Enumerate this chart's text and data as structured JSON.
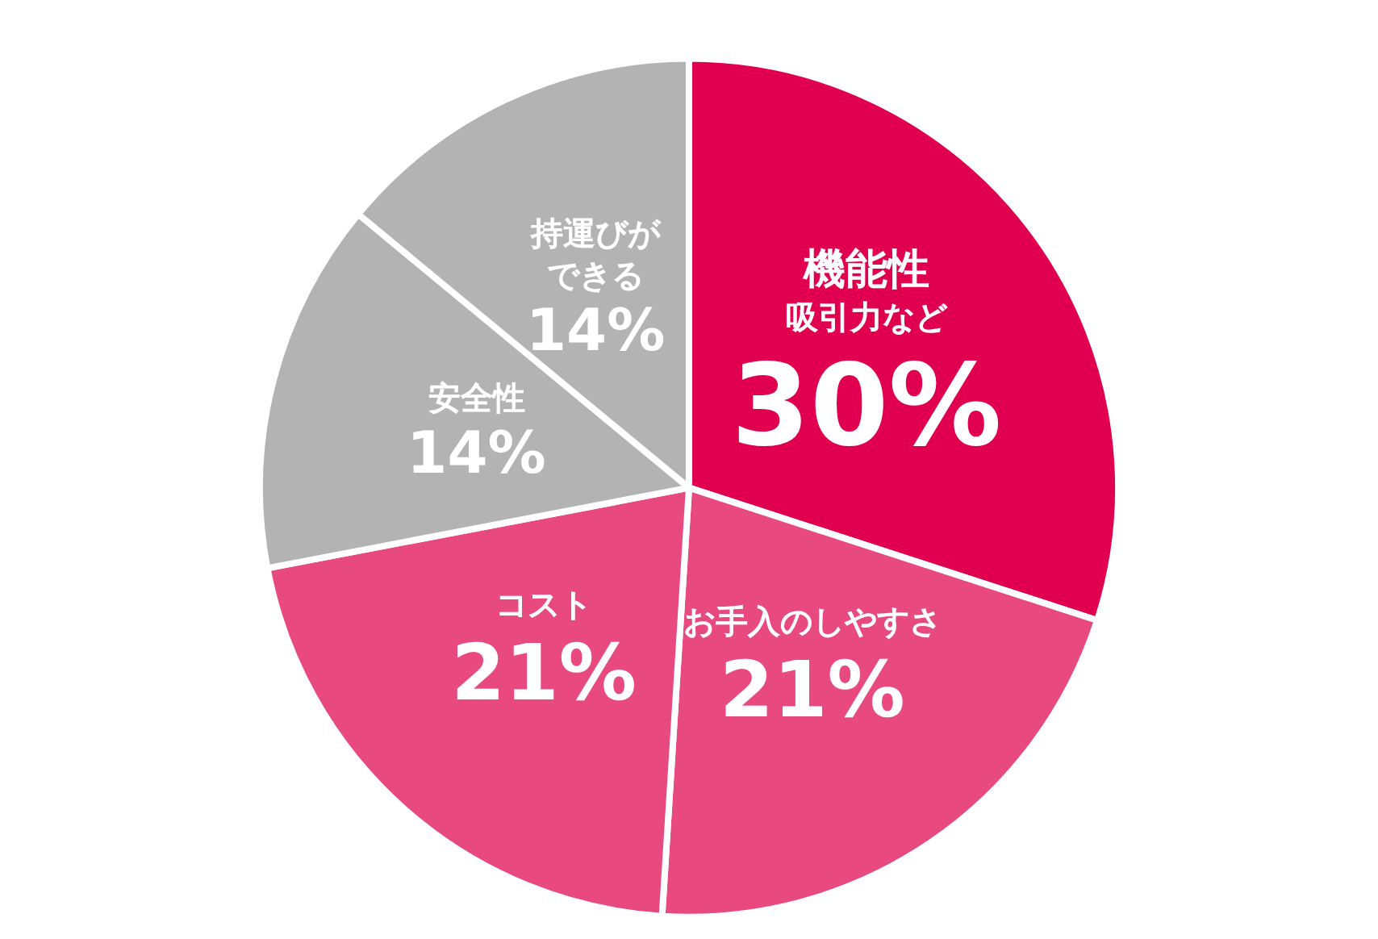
{
  "chart_data": {
    "type": "pie",
    "categories": [
      "機能性",
      "お手入のしやすさ",
      "コスト",
      "安全性",
      "持運びができる"
    ],
    "values": [
      30,
      21,
      21,
      14,
      14
    ],
    "value_labels": [
      "30%",
      "21%",
      "21%",
      "14%",
      "14%"
    ],
    "colors": [
      "#e0004f",
      "#e84a80",
      "#e84a80",
      "#b3b3b3",
      "#b3b3b3"
    ],
    "annotations": [
      {
        "text": "吸引力など",
        "x": "機能性"
      }
    ],
    "legend": false
  }
}
